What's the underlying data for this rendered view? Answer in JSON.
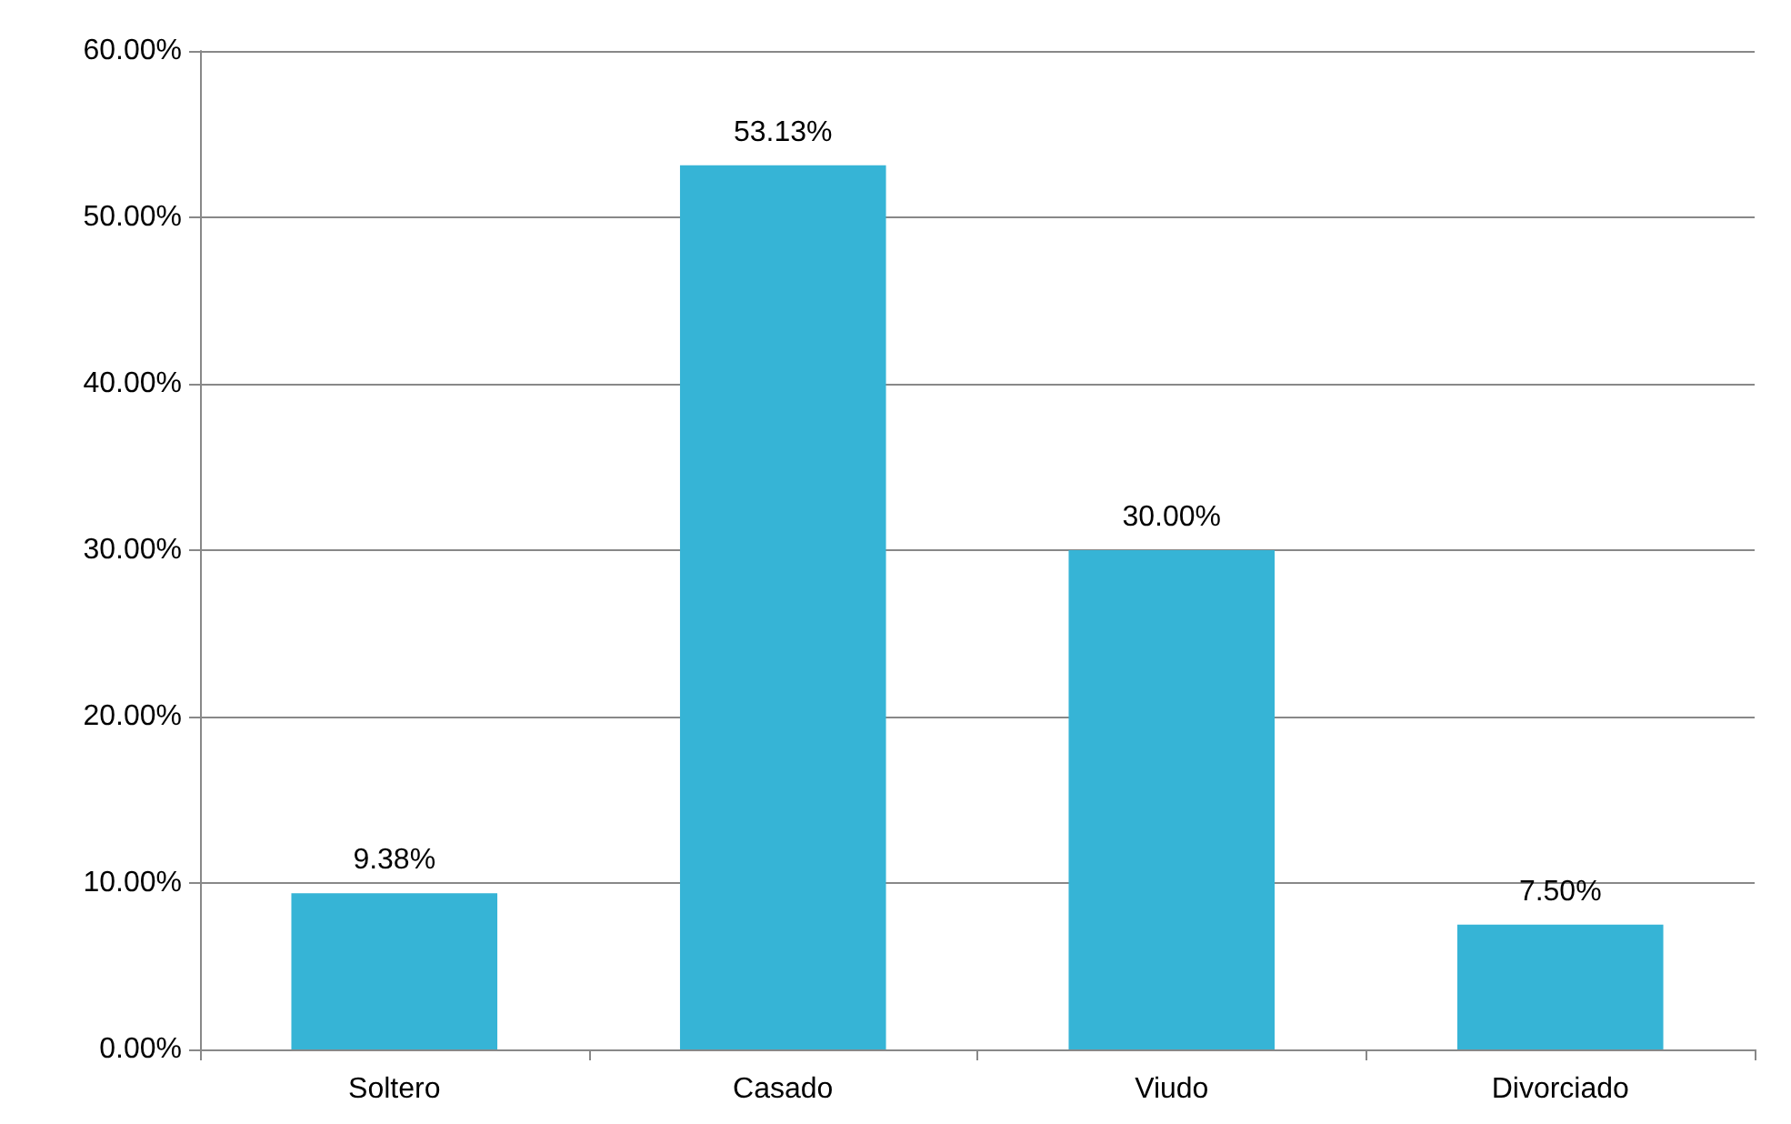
{
  "chart_data": {
    "type": "bar",
    "categories": [
      "Soltero",
      "Casado",
      "Viudo",
      "Divorciado"
    ],
    "values": [
      9.38,
      53.13,
      30.0,
      7.5
    ],
    "value_labels": [
      "9.38%",
      "53.13%",
      "30.00%",
      "7.50%"
    ],
    "color": "#36b4d6",
    "ylim": [
      0,
      60
    ],
    "yticks": [
      {
        "value": 0,
        "label": "0.00%"
      },
      {
        "value": 10,
        "label": "10.00%"
      },
      {
        "value": 20,
        "label": "20.00%"
      },
      {
        "value": 30,
        "label": "30.00%"
      },
      {
        "value": 40,
        "label": "40.00%"
      },
      {
        "value": 50,
        "label": "50.00%"
      },
      {
        "value": 60,
        "label": "60.00%"
      }
    ],
    "grid": "y"
  }
}
